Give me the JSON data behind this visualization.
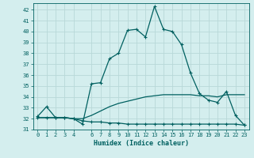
{
  "xlabel": "Humidex (Indice chaleur)",
  "background_color": "#d4eeee",
  "grid_color": "#b8d8d8",
  "line_color": "#006060",
  "xlim": [
    -0.5,
    23.5
  ],
  "ylim": [
    31,
    42.6
  ],
  "yticks": [
    31,
    32,
    33,
    34,
    35,
    36,
    37,
    38,
    39,
    40,
    41,
    42
  ],
  "xticks": [
    0,
    1,
    2,
    3,
    4,
    6,
    7,
    8,
    9,
    10,
    11,
    12,
    13,
    14,
    15,
    16,
    17,
    18,
    19,
    20,
    21,
    22,
    23
  ],
  "series1_x": [
    0,
    1,
    2,
    3,
    4,
    5,
    6,
    7,
    8,
    9,
    10,
    11,
    12,
    13,
    14,
    15,
    16,
    17,
    18,
    19,
    20,
    21,
    22,
    23
  ],
  "series1_y": [
    32.1,
    32.1,
    32.1,
    32.1,
    32.0,
    31.8,
    31.7,
    31.7,
    31.6,
    31.6,
    31.5,
    31.5,
    31.5,
    31.5,
    31.5,
    31.5,
    31.5,
    31.5,
    31.5,
    31.5,
    31.5,
    31.5,
    31.5,
    31.4
  ],
  "series2_x": [
    0,
    1,
    2,
    3,
    4,
    5,
    6,
    7,
    8,
    9,
    10,
    11,
    12,
    13,
    14,
    15,
    16,
    17,
    18,
    19,
    20,
    21,
    22,
    23
  ],
  "series2_y": [
    32.1,
    32.1,
    32.1,
    32.1,
    32.0,
    32.0,
    32.3,
    32.7,
    33.1,
    33.4,
    33.6,
    33.8,
    34.0,
    34.1,
    34.2,
    34.2,
    34.2,
    34.2,
    34.1,
    34.1,
    34.0,
    34.2,
    34.2,
    34.2
  ],
  "series3_x": [
    0,
    1,
    2,
    3,
    4,
    5,
    6,
    7,
    8,
    9,
    10,
    11,
    12,
    13,
    14,
    15,
    16,
    17,
    18,
    19,
    20,
    21,
    22,
    23
  ],
  "series3_y": [
    32.2,
    33.1,
    32.1,
    32.1,
    32.0,
    31.5,
    35.2,
    35.3,
    37.5,
    38.0,
    40.1,
    40.2,
    39.5,
    42.3,
    40.2,
    40.0,
    38.8,
    36.2,
    34.3,
    33.7,
    33.5,
    34.5,
    32.3,
    31.4
  ]
}
